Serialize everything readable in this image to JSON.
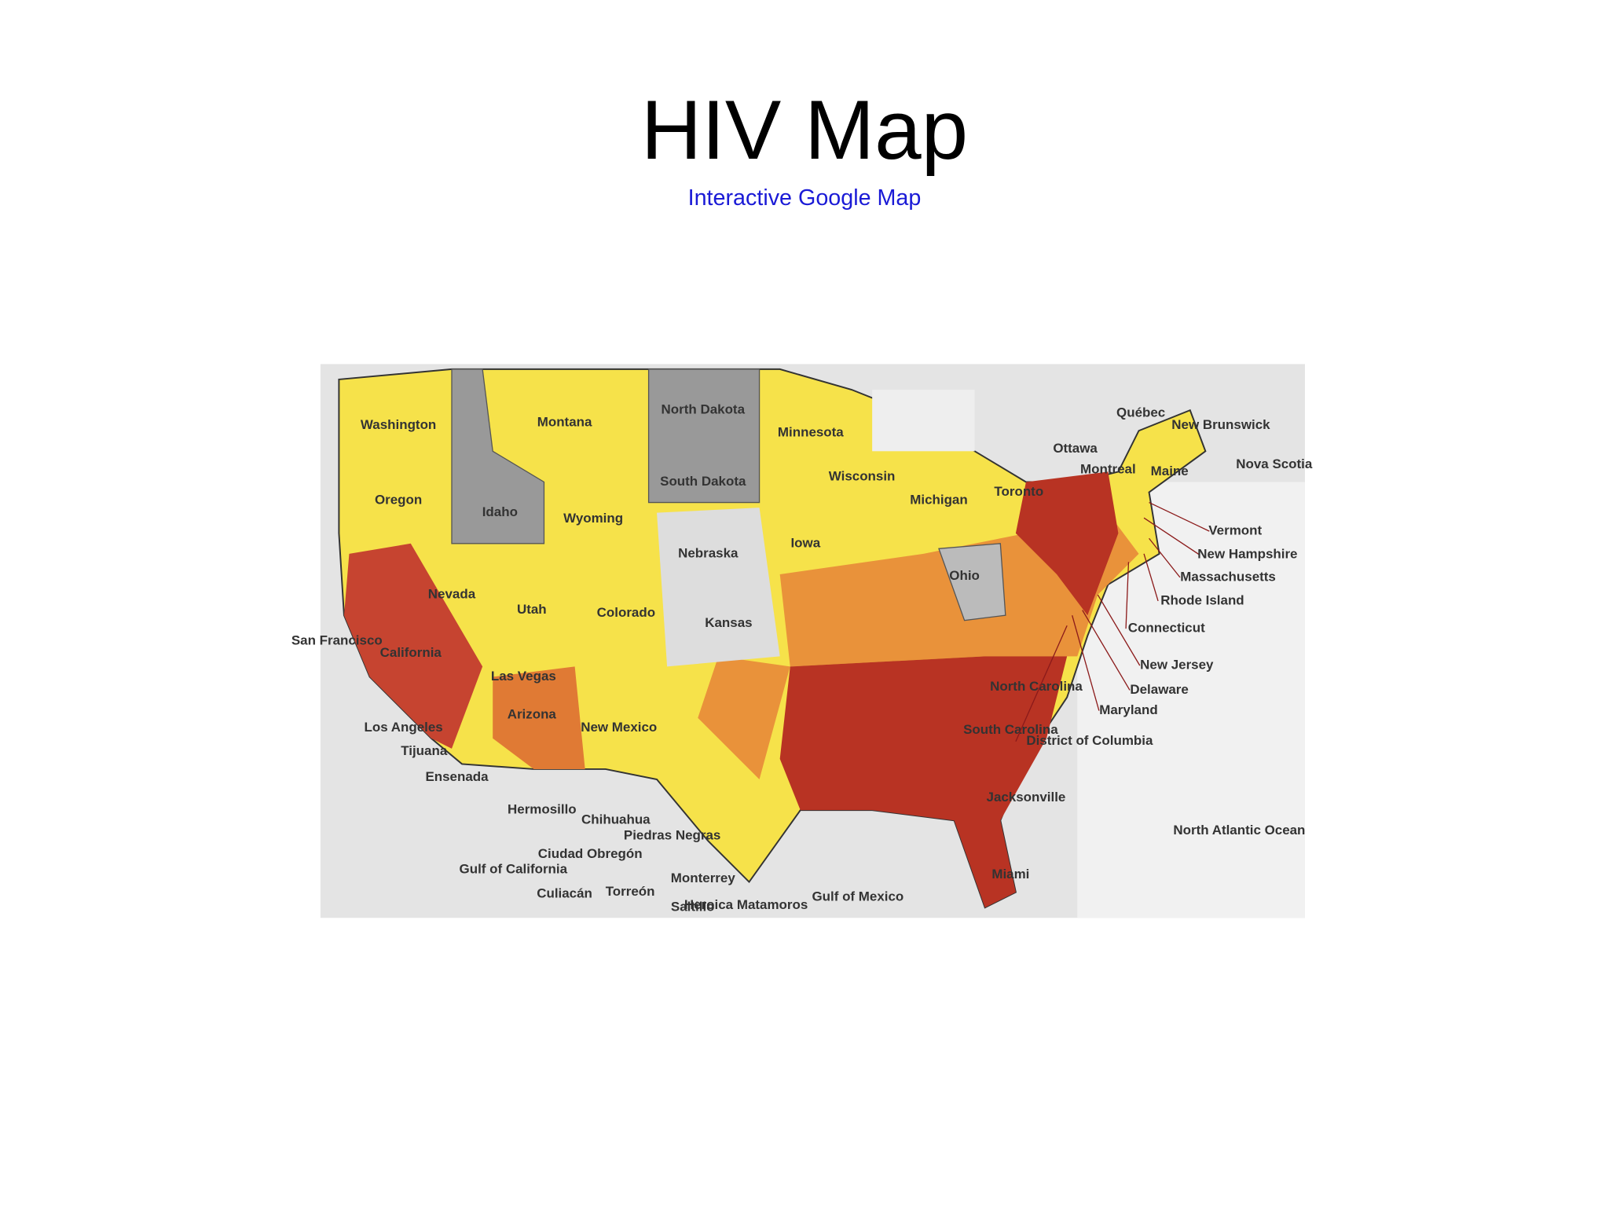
{
  "header": {
    "title": "HIV Map",
    "link": "Interactive Google Map"
  },
  "map": {
    "labels": [
      "Washington",
      "Oregon",
      "Montana",
      "North Dakota",
      "South Dakota",
      "Minnesota",
      "Wisconsin",
      "Michigan",
      "Idaho",
      "Wyoming",
      "Nebraska",
      "Iowa",
      "Nevada",
      "Utah",
      "Colorado",
      "Kansas",
      "California",
      "Ohio",
      "Arizona",
      "New Mexico",
      "North Carolina",
      "South Carolina",
      "San Francisco",
      "Las Vegas",
      "Los Angeles",
      "Tijuana",
      "Ensenada",
      "Hermosillo",
      "Chihuahua",
      "Piedras Negras",
      "Ciudad Obregón",
      "Gulf of California",
      "Culiacán",
      "Torreón",
      "Monterrey",
      "Saltillo",
      "Heroica Matamoros",
      "Gulf of Mexico",
      "Jacksonville",
      "Miami",
      "North Atlantic Ocean",
      "Québec",
      "Ottawa",
      "Montreal",
      "Toronto",
      "Maine",
      "New Brunswick",
      "Nova Scotia",
      "Vermont",
      "New Hampshire",
      "Massachusetts",
      "Rhode Island",
      "Connecticut",
      "New Jersey",
      "Delaware",
      "Maryland",
      "District of Columbia"
    ]
  }
}
